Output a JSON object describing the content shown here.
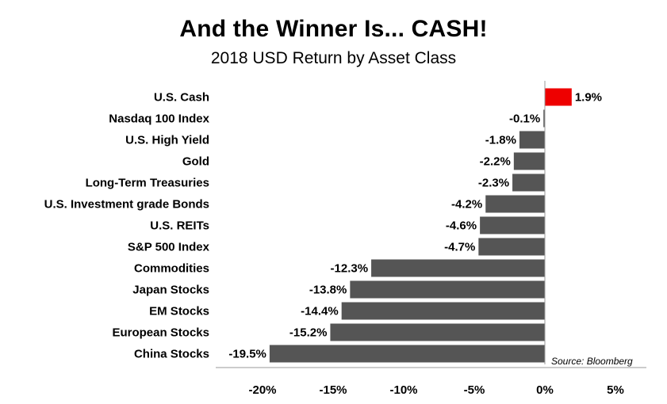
{
  "chart_data": {
    "type": "bar",
    "orientation": "horizontal",
    "title": "And the Winner Is... CASH!",
    "subtitle": "2018 USD Return by Asset Class",
    "categories": [
      "U.S. Cash",
      "Nasdaq 100 Index",
      "U.S. High Yield",
      "Gold",
      "Long-Term Treasuries",
      "U.S. Investment grade Bonds",
      "U.S. REITs",
      "S&P 500 Index",
      "Commodities",
      "Japan Stocks",
      "EM Stocks",
      "European Stocks",
      "China Stocks"
    ],
    "values": [
      1.9,
      -0.1,
      -1.8,
      -2.2,
      -2.3,
      -4.2,
      -4.6,
      -4.7,
      -12.3,
      -13.8,
      -14.4,
      -15.2,
      -19.5
    ],
    "value_labels": [
      "1.9%",
      "-0.1%",
      "-1.8%",
      "-2.2%",
      "-2.3%",
      "-4.2%",
      "-4.6%",
      "-4.7%",
      "-12.3%",
      "-13.8%",
      "-14.4%",
      "-15.2%",
      "-19.5%"
    ],
    "xlim": [
      -20,
      5
    ],
    "xticks": [
      -20,
      -15,
      -10,
      -5,
      0,
      5
    ],
    "xtick_labels": [
      "-20%",
      "-15%",
      "-10%",
      "-5%",
      "0%",
      "5%"
    ],
    "source": "Source: Bloomberg",
    "colors": {
      "positive": "#ee0000",
      "negative": "#555555",
      "axis": "#999999"
    },
    "xlabel": "",
    "ylabel": "",
    "grid": false
  }
}
